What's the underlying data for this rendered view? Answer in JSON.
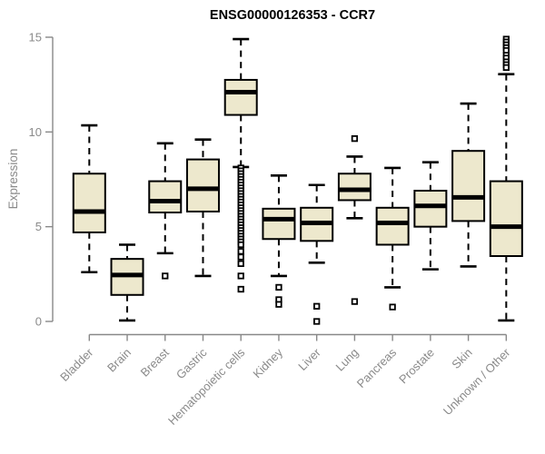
{
  "chart_data": {
    "type": "boxplot",
    "title": "ENSG00000126353 - CCR7",
    "ylabel": "Expression",
    "xlabel": "",
    "ylim": [
      0,
      15
    ],
    "yticks": [
      0,
      5,
      10,
      15
    ],
    "grid": false,
    "legend": false,
    "colors": {
      "box_fill": "#EDE8CD",
      "box_stroke": "#000000",
      "median": "#000000",
      "whisker": "#000000",
      "axis": "#888888",
      "tick_label": "#8a8a8a",
      "title": "#000000",
      "background": "#ffffff"
    },
    "categories": [
      "Bladder",
      "Brain",
      "Breast",
      "Gastric",
      "Hematopoietic cells",
      "Kidney",
      "Liver",
      "Lung",
      "Pancreas",
      "Prostate",
      "Skin",
      "Unknown / Other"
    ],
    "boxes": [
      {
        "category": "Bladder",
        "whisker_low": 2.6,
        "q1": 4.7,
        "median": 5.8,
        "q3": 7.8,
        "whisker_high": 10.35,
        "outliers": []
      },
      {
        "category": "Brain",
        "whisker_low": 0.05,
        "q1": 1.4,
        "median": 2.45,
        "q3": 3.3,
        "whisker_high": 4.05,
        "outliers": []
      },
      {
        "category": "Breast",
        "whisker_low": 3.6,
        "q1": 5.75,
        "median": 6.35,
        "q3": 7.4,
        "whisker_high": 9.4,
        "outliers": [
          2.4
        ]
      },
      {
        "category": "Gastric",
        "whisker_low": 2.4,
        "q1": 5.8,
        "median": 7.0,
        "q3": 8.55,
        "whisker_high": 9.6,
        "outliers": []
      },
      {
        "category": "Hematopoietic cells",
        "whisker_low": 8.15,
        "q1": 10.9,
        "median": 12.1,
        "q3": 12.75,
        "whisker_high": 14.9,
        "outliers": [
          8.1,
          7.95,
          7.8,
          7.65,
          7.5,
          7.35,
          7.2,
          7.05,
          6.9,
          6.75,
          6.6,
          6.45,
          6.3,
          6.15,
          6.0,
          5.85,
          5.7,
          5.55,
          5.4,
          5.25,
          5.1,
          4.95,
          4.8,
          4.65,
          4.5,
          4.35,
          4.2,
          4.05,
          3.7,
          3.4,
          3.05,
          2.4,
          1.7
        ]
      },
      {
        "category": "Kidney",
        "whisker_low": 2.4,
        "q1": 4.35,
        "median": 5.4,
        "q3": 5.95,
        "whisker_high": 7.7,
        "outliers": [
          1.8,
          1.15,
          0.9
        ]
      },
      {
        "category": "Liver",
        "whisker_low": 3.1,
        "q1": 4.25,
        "median": 5.2,
        "q3": 6.0,
        "whisker_high": 7.2,
        "outliers": [
          0.8,
          0.0
        ]
      },
      {
        "category": "Lung",
        "whisker_low": 5.45,
        "q1": 6.4,
        "median": 6.95,
        "q3": 7.8,
        "whisker_high": 8.7,
        "outliers": [
          9.65,
          1.05
        ]
      },
      {
        "category": "Pancreas",
        "whisker_low": 1.8,
        "q1": 4.05,
        "median": 5.2,
        "q3": 6.0,
        "whisker_high": 8.1,
        "outliers": [
          0.76
        ]
      },
      {
        "category": "Prostate",
        "whisker_low": 2.75,
        "q1": 5.0,
        "median": 6.1,
        "q3": 6.9,
        "whisker_high": 8.4,
        "outliers": []
      },
      {
        "category": "Skin",
        "whisker_low": 2.9,
        "q1": 5.3,
        "median": 6.55,
        "q3": 9.0,
        "whisker_high": 11.5,
        "outliers": []
      },
      {
        "category": "Unknown / Other",
        "whisker_low": 0.05,
        "q1": 3.45,
        "median": 5.0,
        "q3": 7.4,
        "whisker_high": 13.05,
        "outliers": [
          14.9,
          14.75,
          14.6,
          14.45,
          14.3,
          14.05,
          13.9,
          13.7,
          13.55,
          13.4
        ]
      }
    ]
  }
}
